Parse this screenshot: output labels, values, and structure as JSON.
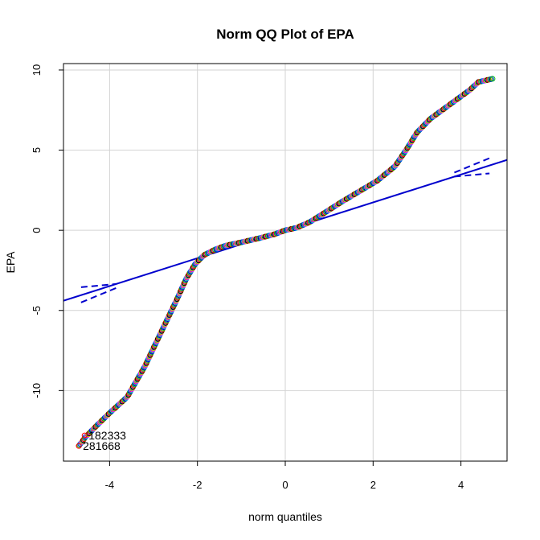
{
  "chart_data": {
    "type": "scatter",
    "title": "Norm QQ Plot of EPA",
    "xlabel": "norm quantiles",
    "ylabel": "EPA",
    "xlim": [
      -5.05,
      5.05
    ],
    "ylim": [
      -14.4,
      10.4
    ],
    "xticks": [
      -4,
      -2,
      0,
      2,
      4
    ],
    "yticks": [
      -10,
      -5,
      0,
      5,
      10
    ],
    "grid": true,
    "point_colors": [
      "#ff0000",
      "#00c800",
      "#0000ff",
      "#00c8c8",
      "#ff00ff",
      "#c8c800",
      "#000000"
    ],
    "curve": [
      [
        -4.7,
        -13.45
      ],
      [
        -4.55,
        -12.9
      ],
      [
        -4.3,
        -12.2
      ],
      [
        -4.0,
        -11.4
      ],
      [
        -3.6,
        -10.4
      ],
      [
        -3.2,
        -8.5
      ],
      [
        -2.8,
        -6.2
      ],
      [
        -2.5,
        -4.5
      ],
      [
        -2.25,
        -3.0
      ],
      [
        -2.05,
        -2.1
      ],
      [
        -1.85,
        -1.55
      ],
      [
        -1.6,
        -1.2
      ],
      [
        -1.35,
        -0.95
      ],
      [
        -1.0,
        -0.75
      ],
      [
        -0.6,
        -0.5
      ],
      [
        -0.25,
        -0.25
      ],
      [
        0.0,
        0.0
      ],
      [
        0.25,
        0.15
      ],
      [
        0.55,
        0.5
      ],
      [
        0.9,
        1.1
      ],
      [
        1.3,
        1.8
      ],
      [
        1.7,
        2.45
      ],
      [
        2.1,
        3.1
      ],
      [
        2.5,
        4.0
      ],
      [
        2.75,
        5.0
      ],
      [
        3.0,
        6.1
      ],
      [
        3.3,
        6.95
      ],
      [
        3.6,
        7.55
      ],
      [
        3.9,
        8.15
      ],
      [
        4.2,
        8.75
      ],
      [
        4.4,
        9.25
      ],
      [
        4.72,
        9.45
      ]
    ],
    "reference_line": {
      "intercept": 0.0,
      "slope": 0.87,
      "color": "#0000cd"
    },
    "envelope": {
      "left": {
        "x": [
          -4.65,
          -3.85
        ],
        "upper": [
          -3.55,
          -3.35
        ],
        "lower": [
          -4.5,
          -3.6
        ]
      },
      "right": {
        "x": [
          3.85,
          4.65
        ],
        "upper": [
          3.6,
          4.5
        ],
        "lower": [
          3.35,
          3.55
        ]
      }
    },
    "annotations": [
      {
        "label": "182333",
        "x": -4.57,
        "y": -12.8
      },
      {
        "label": "281668",
        "x": -4.7,
        "y": -13.45
      }
    ]
  }
}
